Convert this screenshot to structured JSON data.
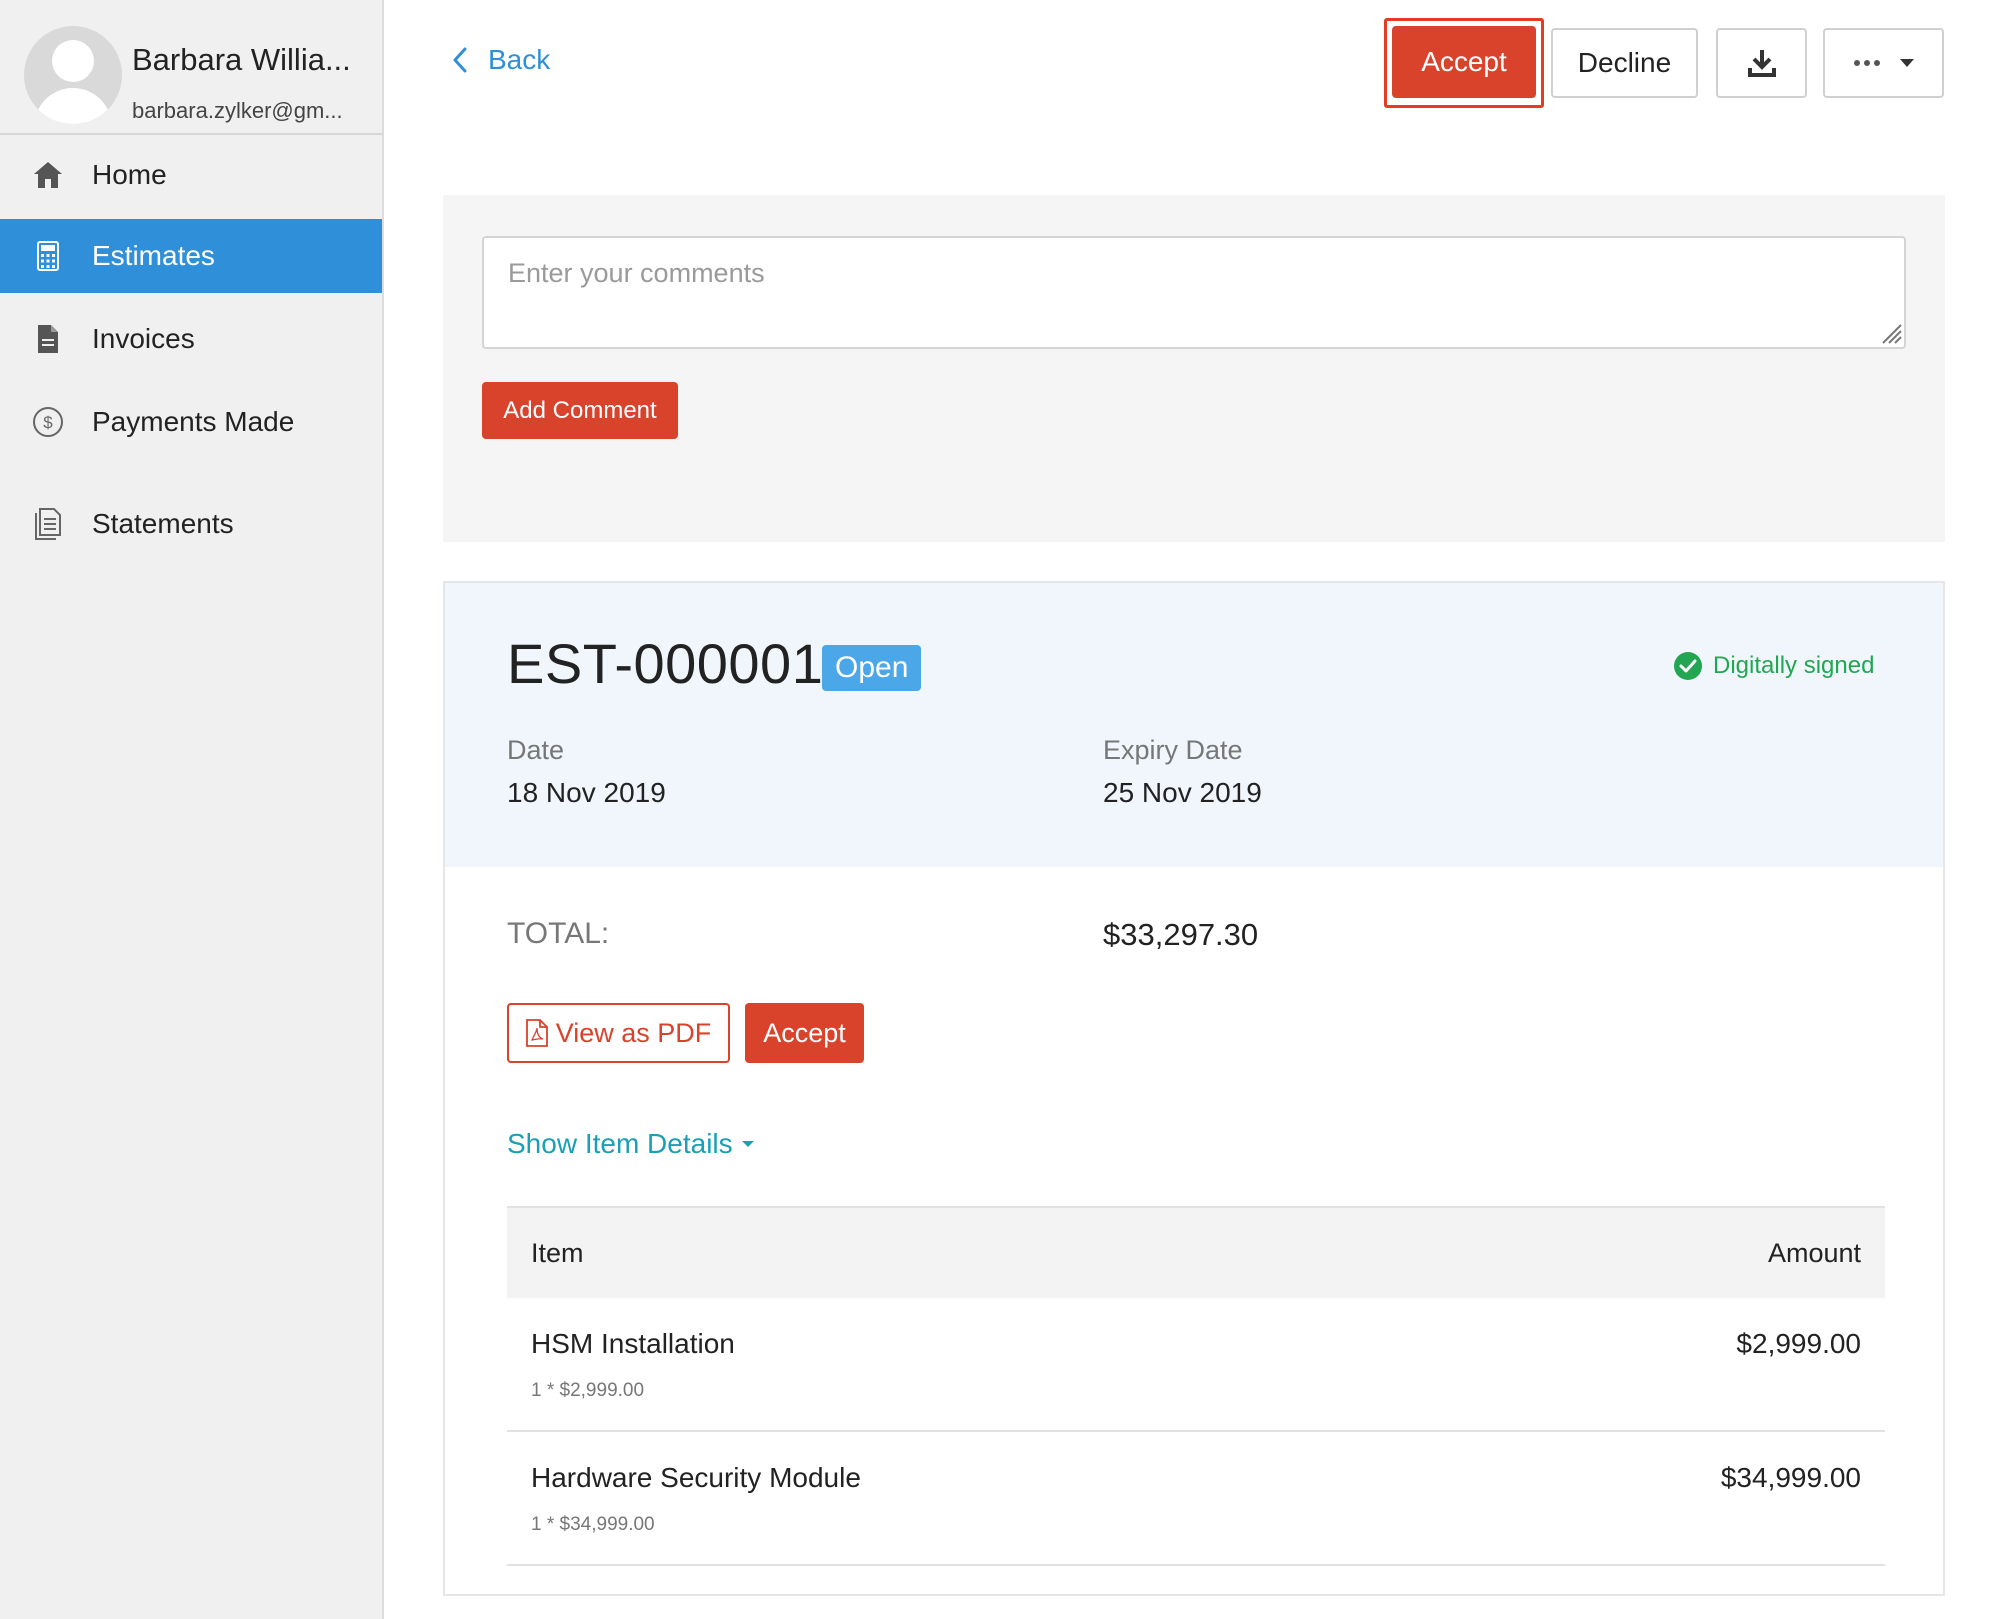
{
  "user": {
    "name": "Barbara Willia...",
    "email": "barbara.zylker@gm..."
  },
  "sidebar": {
    "items": [
      {
        "label": "Home",
        "icon": "home-icon"
      },
      {
        "label": "Estimates",
        "icon": "calculator-icon",
        "active": true
      },
      {
        "label": "Invoices",
        "icon": "document-icon"
      },
      {
        "label": "Payments Made",
        "icon": "dollar-circle-icon"
      },
      {
        "label": "Statements",
        "icon": "statement-icon"
      }
    ]
  },
  "toolbar": {
    "back_label": "Back",
    "accept_label": "Accept",
    "decline_label": "Decline",
    "download_icon": "download-icon",
    "more_icon": "more-dots-icon"
  },
  "comments": {
    "placeholder": "Enter your comments",
    "value": "",
    "add_label": "Add Comment"
  },
  "estimate": {
    "number": "EST-000001",
    "status": "Open",
    "signed_label": "Digitally signed",
    "date_label": "Date",
    "date_value": "18 Nov 2019",
    "expiry_label": "Expiry Date",
    "expiry_value": "25 Nov 2019",
    "total_label": "TOTAL:",
    "total_value": "$33,297.30",
    "view_pdf_label": "View as PDF",
    "accept_label": "Accept",
    "show_details_label": "Show Item Details"
  },
  "items_table": {
    "headers": [
      "Item",
      "Amount"
    ],
    "rows": [
      {
        "name": "HSM Installation",
        "detail": "1 * $2,999.00",
        "amount": "$2,999.00"
      },
      {
        "name": "Hardware Security Module",
        "detail": "1 * $34,999.00",
        "amount": "$34,999.00"
      }
    ]
  },
  "colors": {
    "accent_red": "#d9432c",
    "active_blue": "#2f8fd9",
    "status_blue": "#4ba7e8",
    "signed_green": "#22a652",
    "link_teal": "#1a9fb5"
  }
}
